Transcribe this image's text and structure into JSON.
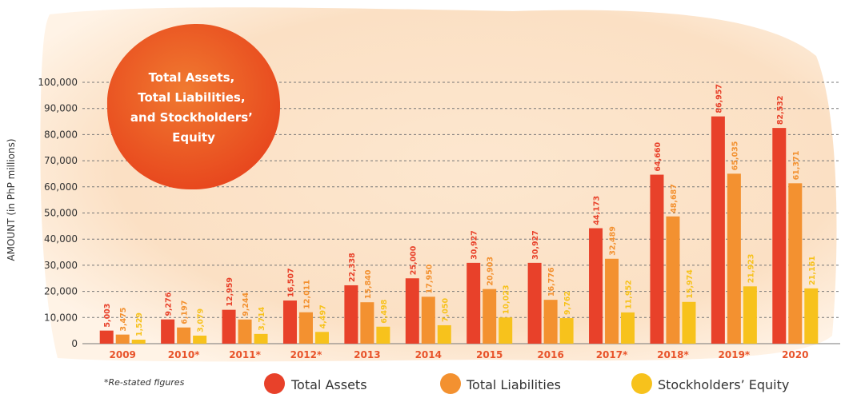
{
  "chart_data": {
    "type": "bar",
    "title": "Total Assets, Total Liabilities, and Stockholders’ Equity",
    "title_lines": [
      "Total Assets,",
      "Total Liabilities,",
      "and Stockholders’",
      "Equity"
    ],
    "ylabel": "AMOUNT (in PhP millions)",
    "ylim": [
      0,
      100000
    ],
    "yticks": [
      "0",
      "10,000",
      "20,000",
      "30,000",
      "40,000",
      "50,000",
      "60,000",
      "70,000",
      "80,000",
      "90,000",
      "100,000"
    ],
    "grid": true,
    "categories": [
      "2009",
      "2010*",
      "2011*",
      "2012*",
      "2013",
      "2014",
      "2015",
      "2016",
      "2017*",
      "2018*",
      "2019*",
      "2020"
    ],
    "series": [
      {
        "name": "Total Assets",
        "color": "#e8412a",
        "values": [
          5003,
          9276,
          12959,
          16507,
          22338,
          25000,
          30927,
          30927,
          44173,
          64660,
          86957,
          82532
        ],
        "labels": [
          "5,003",
          "9,276",
          "12,959",
          "16,507",
          "22,338",
          "25,000",
          "30,927",
          "30,927",
          "44,173",
          "64,660",
          "86,957",
          "82,532"
        ]
      },
      {
        "name": "Total Liabilities",
        "color": "#f39130",
        "values": [
          3475,
          6197,
          9244,
          12011,
          15840,
          17950,
          20903,
          16776,
          32489,
          48687,
          65035,
          61371
        ],
        "labels": [
          "3,475",
          "6,197",
          "9,244",
          "12,011",
          "15,840",
          "17,950",
          "20,903",
          "16,776",
          "32,489",
          "48,687",
          "65,035",
          "61,371"
        ]
      },
      {
        "name": "Stockholders’ Equity",
        "color": "#f7c21c",
        "values": [
          1529,
          3079,
          3714,
          4497,
          6498,
          7050,
          10023,
          9762,
          11952,
          15974,
          21923,
          21161
        ],
        "labels": [
          "1,529",
          "3,079",
          "3,714",
          "4,497",
          "6,498",
          "7,050",
          "10,023",
          "9,762",
          "11,952",
          "15,974",
          "21,923",
          "21,161"
        ]
      }
    ],
    "legend_position": "bottom",
    "footnote": "*Re-stated figures"
  },
  "colors": {
    "axis_text": "#333333",
    "category_text": "#e8532a",
    "title_circle": "#ec5a22",
    "title_text": "#ffffff",
    "wash": "#fbe0c4",
    "grid": "#777777"
  }
}
